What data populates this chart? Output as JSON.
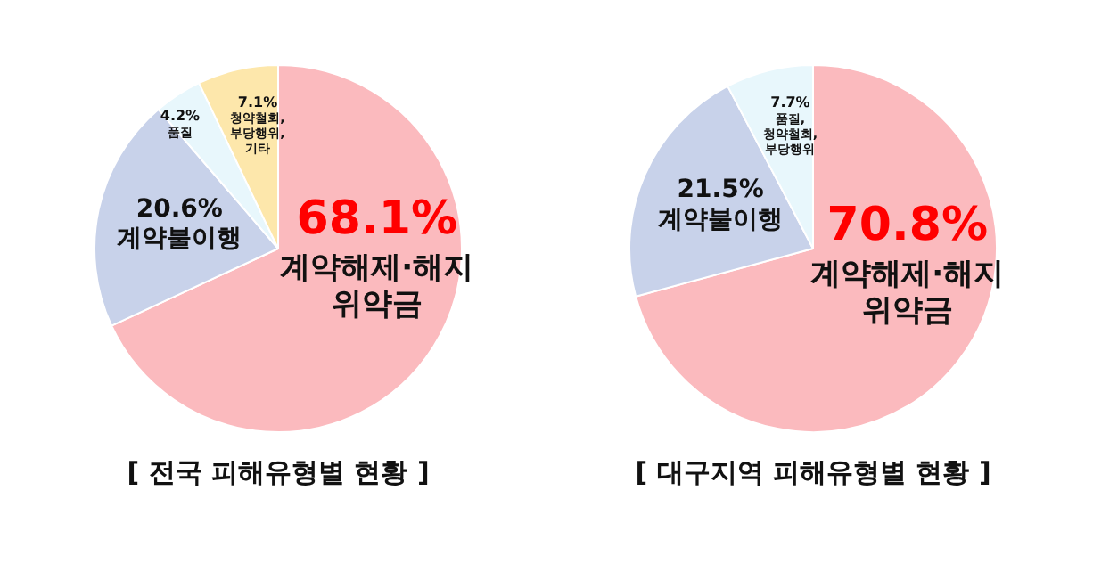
{
  "chart_data": [
    {
      "type": "pie",
      "title": "[ 전국 피해유형별 현황 ]",
      "categories": [
        "계약해제·해지 위약금",
        "계약불이행",
        "품질",
        "청약철회, 부당행위, 기타"
      ],
      "values": [
        68.1,
        20.6,
        4.2,
        7.1
      ],
      "value_labels": [
        "68.1%",
        "20.6%",
        "4.2%",
        "7.1%"
      ],
      "colors": [
        "#fbbabe",
        "#c8d2ea",
        "#e8f7fc",
        "#fde7ab"
      ]
    },
    {
      "type": "pie",
      "title": "[ 대구지역 피해유형별 현황 ]",
      "categories": [
        "계약해제·해지 위약금",
        "계약불이행",
        "품질, 청약철회, 부당행위"
      ],
      "values": [
        70.8,
        21.5,
        7.7
      ],
      "value_labels": [
        "70.8%",
        "21.5%",
        "7.7%"
      ],
      "colors": [
        "#fbbabe",
        "#c8d2ea",
        "#e8f7fc"
      ]
    }
  ]
}
